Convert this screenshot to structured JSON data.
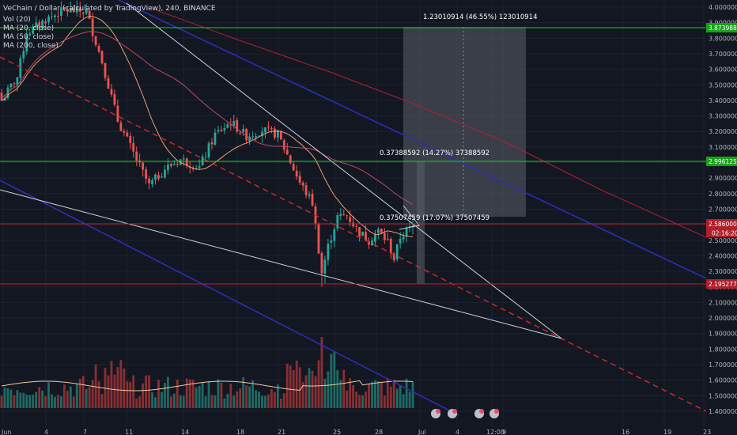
{
  "header": {
    "title": "VeChain / Dollar (calculated by TradingView), 240, BINANCE",
    "legend": [
      "Vol (20)",
      "MA (20, close)",
      "MA (50, close)",
      "MA (200, close)"
    ]
  },
  "colors": {
    "background": "#131722",
    "grid": "#1e2230",
    "up": "#26a69a",
    "down": "#ef5350",
    "hline_green": "#00e000",
    "hline_red": "#c01c2c",
    "trend_white": "#cfd3dc",
    "trend_red_dashed": "#d42a2a",
    "trend_blue": "#2b2fb0",
    "ma20": "#e8a070",
    "ma50": "#c04a60",
    "ma200": "#b02030",
    "volume_ma": "#f0c8a0"
  },
  "chart_data": {
    "type": "candlestick",
    "symbol": "VeChain / Dollar",
    "interval": "240",
    "exchange": "BINANCE",
    "y_axis_side": "right",
    "ylim": [
      1.28,
      4.02
    ],
    "y_ticks": [
      "4.00000000",
      "3.90000000",
      "3.80000000",
      "3.70000000",
      "3.60000000",
      "3.50000000",
      "3.40000000",
      "3.30000000",
      "3.20000000",
      "3.10000000",
      "3.00000000",
      "2.90000000",
      "2.80000000",
      "2.70000000",
      "2.60000000",
      "2.50000000",
      "2.40000000",
      "2.30000000",
      "2.20000000",
      "2.10000000",
      "2.00000000",
      "1.90000000",
      "1.80000000",
      "1.70000000",
      "1.60000000",
      "1.50000000",
      "1.40000000"
    ],
    "x_ticks": [
      "Jun",
      "4",
      "7",
      "11",
      "14",
      "18",
      "21",
      "25",
      "28",
      "Jul",
      "4",
      "9",
      "12:00",
      "16",
      "19",
      "23"
    ],
    "key_closes": [
      [
        0,
        3.4
      ],
      [
        5,
        3.55
      ],
      [
        8,
        3.83
      ],
      [
        14,
        3.92
      ],
      [
        20,
        3.98
      ],
      [
        27,
        3.97
      ],
      [
        32,
        3.65
      ],
      [
        37,
        3.27
      ],
      [
        42,
        3.06
      ],
      [
        47,
        2.85
      ],
      [
        52,
        2.96
      ],
      [
        57,
        3.02
      ],
      [
        63,
        2.97
      ],
      [
        68,
        3.18
      ],
      [
        73,
        3.26
      ],
      [
        78,
        3.17
      ],
      [
        83,
        3.21
      ],
      [
        88,
        3.18
      ],
      [
        91,
        3.05
      ],
      [
        95,
        2.87
      ],
      [
        99,
        2.74
      ],
      [
        102,
        2.29
      ],
      [
        104,
        2.46
      ],
      [
        107,
        2.65
      ],
      [
        110,
        2.66
      ],
      [
        114,
        2.55
      ],
      [
        117,
        2.5
      ],
      [
        120,
        2.56
      ],
      [
        123,
        2.49
      ],
      [
        125,
        2.38
      ],
      [
        127,
        2.52
      ],
      [
        129,
        2.56
      ],
      [
        131,
        2.59
      ]
    ],
    "price_levels": [
      {
        "label": "3.87398847",
        "value": 3.87398847,
        "color": "#00c800"
      },
      {
        "label": "2.99612526",
        "value": 2.99612526,
        "color": "#00c800"
      },
      {
        "label": "2.58600000",
        "value": 2.586,
        "color": "#d03040"
      },
      {
        "label": "2.19527705",
        "value": 2.19527705,
        "color": "#d03040"
      }
    ],
    "current_price": {
      "label": "2.58600000",
      "countdown": "02:16:20"
    },
    "annotations": [
      "1.23010914 (46.55%) 123010914",
      "0.37388592 (14.27%) 37388592",
      "0.37507459 (17.07%) 37507459"
    ],
    "series": [
      {
        "name": "Vol (20)"
      },
      {
        "name": "MA (20, close)"
      },
      {
        "name": "MA (50, close)"
      },
      {
        "name": "MA (200, close)"
      }
    ],
    "grid": true
  }
}
